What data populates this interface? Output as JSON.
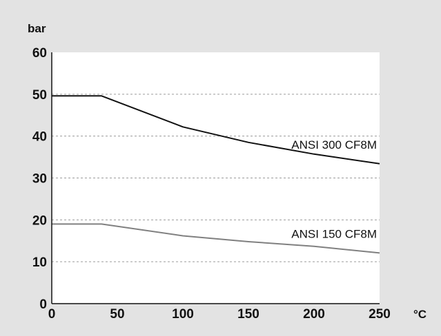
{
  "chart_data": {
    "type": "line",
    "ylabel": "bar",
    "xlabel": "°C",
    "xlim": [
      0,
      250
    ],
    "ylim": [
      0,
      60
    ],
    "x_ticks": [
      0,
      50,
      100,
      150,
      200,
      250
    ],
    "y_ticks": [
      0,
      10,
      20,
      30,
      40,
      50,
      60
    ],
    "grid": "horizontal dashed",
    "colors": {
      "background": "#e3e3e3",
      "plot": "#ffffff",
      "grid": "#9a9a9a",
      "axis": "#111111",
      "series_300": "#111111",
      "series_150": "#808080"
    },
    "series": [
      {
        "name": "ANSI 300 CF8M",
        "x": [
          0,
          38,
          100,
          150,
          200,
          250
        ],
        "y": [
          49.6,
          49.6,
          42.2,
          38.5,
          35.7,
          33.4
        ]
      },
      {
        "name": "ANSI 150 CF8M",
        "x": [
          0,
          38,
          100,
          150,
          200,
          250
        ],
        "y": [
          19.0,
          19.0,
          16.2,
          14.8,
          13.7,
          12.1
        ]
      }
    ]
  }
}
